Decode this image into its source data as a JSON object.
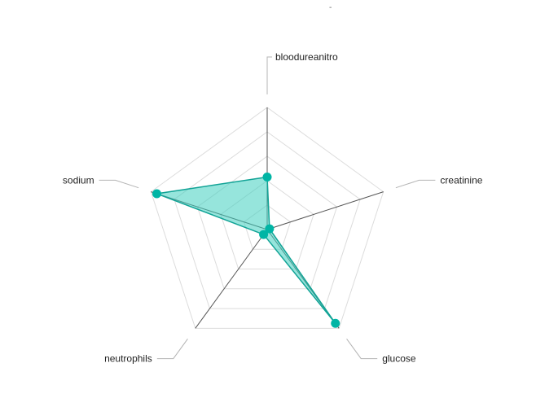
{
  "title": "-",
  "chart_data": {
    "type": "radar",
    "axes": [
      "bloodureanitro",
      "creatinine",
      "glucose",
      "neutrophils",
      "sodium"
    ],
    "series": [
      {
        "values": [
          0.43,
          0.02,
          0.95,
          0.05,
          0.95
        ]
      }
    ],
    "range": [
      0,
      1
    ],
    "grid_levels": 5,
    "grid": true,
    "legend": "none",
    "colors": {
      "fill": "#40d0bf",
      "stroke": "#12a396",
      "point": "#00b5a5"
    }
  }
}
